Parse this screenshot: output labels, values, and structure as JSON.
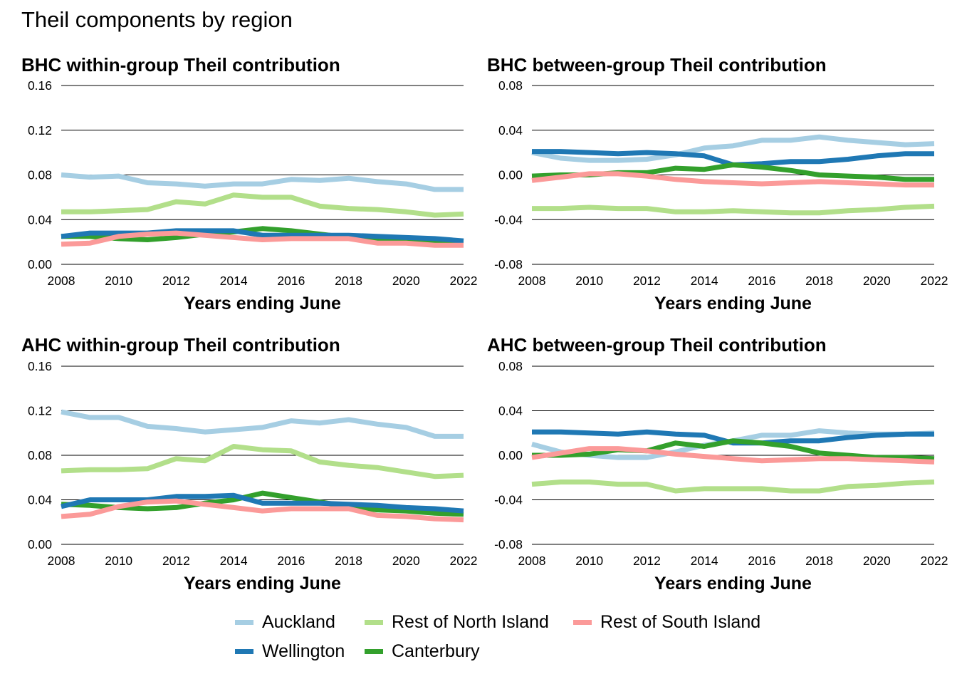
{
  "title": "Theil components by region",
  "colors": {
    "Auckland": "#a6cee3",
    "Wellington": "#1f78b4",
    "Rest of North Island": "#b2df8a",
    "Canterbury": "#33a02c",
    "Rest of South Island": "#fb9a99"
  },
  "legend": [
    {
      "name": "Auckland"
    },
    {
      "name": "Rest of North Island"
    },
    {
      "name": "Rest of South Island"
    },
    {
      "name": "Wellington"
    },
    {
      "name": "Canterbury"
    }
  ],
  "chart_data": [
    {
      "type": "line",
      "title": "BHC within-group Theil contribution",
      "xlabel": "Years ending June",
      "ylabel": "",
      "xlim": [
        2008,
        2022
      ],
      "ylim": [
        0,
        0.16
      ],
      "xticks": [
        "2008",
        "2010",
        "2012",
        "2014",
        "2016",
        "2018",
        "2020",
        "2022"
      ],
      "yticks": [
        "0.00",
        "0.04",
        "0.08",
        "0.12",
        "0.16"
      ],
      "x": [
        2008,
        2009,
        2010,
        2011,
        2012,
        2013,
        2014,
        2015,
        2016,
        2017,
        2018,
        2019,
        2020,
        2021,
        2022
      ],
      "series": [
        {
          "name": "Auckland",
          "values": [
            0.08,
            0.078,
            0.079,
            0.073,
            0.072,
            0.07,
            0.072,
            0.072,
            0.076,
            0.075,
            0.077,
            0.074,
            0.072,
            0.067,
            0.067
          ]
        },
        {
          "name": "Rest of North Island",
          "values": [
            0.047,
            0.047,
            0.048,
            0.049,
            0.056,
            0.054,
            0.062,
            0.06,
            0.06,
            0.052,
            0.05,
            0.049,
            0.047,
            0.044,
            0.045
          ]
        },
        {
          "name": "Canterbury",
          "values": [
            0.025,
            0.025,
            0.023,
            0.022,
            0.024,
            0.027,
            0.029,
            0.032,
            0.03,
            0.027,
            0.024,
            0.022,
            0.021,
            0.02,
            0.02
          ]
        },
        {
          "name": "Wellington",
          "values": [
            0.025,
            0.028,
            0.028,
            0.028,
            0.03,
            0.03,
            0.03,
            0.026,
            0.026,
            0.026,
            0.026,
            0.025,
            0.024,
            0.023,
            0.021
          ]
        },
        {
          "name": "Rest of South Island",
          "values": [
            0.018,
            0.019,
            0.025,
            0.027,
            0.028,
            0.026,
            0.024,
            0.022,
            0.023,
            0.023,
            0.023,
            0.019,
            0.019,
            0.017,
            0.017
          ]
        }
      ]
    },
    {
      "type": "line",
      "title": "BHC between-group Theil contribution",
      "xlabel": "Years ending June",
      "ylabel": "",
      "xlim": [
        2008,
        2022
      ],
      "ylim": [
        -0.08,
        0.08
      ],
      "xticks": [
        "2008",
        "2010",
        "2012",
        "2014",
        "2016",
        "2018",
        "2020",
        "2022"
      ],
      "yticks": [
        "-0.08",
        "-0.04",
        "0.00",
        "0.04",
        "0.08"
      ],
      "x": [
        2008,
        2009,
        2010,
        2011,
        2012,
        2013,
        2014,
        2015,
        2016,
        2017,
        2018,
        2019,
        2020,
        2021,
        2022
      ],
      "series": [
        {
          "name": "Auckland",
          "values": [
            0.02,
            0.015,
            0.013,
            0.013,
            0.014,
            0.018,
            0.024,
            0.026,
            0.031,
            0.031,
            0.034,
            0.031,
            0.029,
            0.027,
            0.028
          ]
        },
        {
          "name": "Wellington",
          "values": [
            0.021,
            0.021,
            0.02,
            0.019,
            0.02,
            0.019,
            0.017,
            0.009,
            0.01,
            0.012,
            0.012,
            0.014,
            0.017,
            0.019,
            0.019
          ]
        },
        {
          "name": "Canterbury",
          "values": [
            -0.001,
            0.0,
            0.0,
            0.002,
            0.002,
            0.006,
            0.005,
            0.009,
            0.007,
            0.004,
            0.0,
            -0.001,
            -0.002,
            -0.004,
            -0.004
          ]
        },
        {
          "name": "Rest of South Island",
          "values": [
            -0.005,
            -0.002,
            0.001,
            0.001,
            -0.001,
            -0.004,
            -0.006,
            -0.007,
            -0.008,
            -0.007,
            -0.006,
            -0.007,
            -0.008,
            -0.009,
            -0.009
          ]
        },
        {
          "name": "Rest of North Island",
          "values": [
            -0.03,
            -0.03,
            -0.029,
            -0.03,
            -0.03,
            -0.033,
            -0.033,
            -0.032,
            -0.033,
            -0.034,
            -0.034,
            -0.032,
            -0.031,
            -0.029,
            -0.028
          ]
        }
      ]
    },
    {
      "type": "line",
      "title": "AHC within-group Theil contribution",
      "xlabel": "Years ending June",
      "ylabel": "",
      "xlim": [
        2008,
        2022
      ],
      "ylim": [
        0,
        0.16
      ],
      "xticks": [
        "2008",
        "2010",
        "2012",
        "2014",
        "2016",
        "2018",
        "2020",
        "2022"
      ],
      "yticks": [
        "0.00",
        "0.04",
        "0.08",
        "0.12",
        "0.16"
      ],
      "x": [
        2008,
        2009,
        2010,
        2011,
        2012,
        2013,
        2014,
        2015,
        2016,
        2017,
        2018,
        2019,
        2020,
        2021,
        2022
      ],
      "series": [
        {
          "name": "Auckland",
          "values": [
            0.119,
            0.114,
            0.114,
            0.106,
            0.104,
            0.101,
            0.103,
            0.105,
            0.111,
            0.109,
            0.112,
            0.108,
            0.105,
            0.097,
            0.097
          ]
        },
        {
          "name": "Rest of North Island",
          "values": [
            0.066,
            0.067,
            0.067,
            0.068,
            0.077,
            0.075,
            0.088,
            0.085,
            0.084,
            0.074,
            0.071,
            0.069,
            0.065,
            0.061,
            0.062
          ]
        },
        {
          "name": "Canterbury",
          "values": [
            0.036,
            0.035,
            0.033,
            0.032,
            0.033,
            0.037,
            0.04,
            0.046,
            0.042,
            0.038,
            0.034,
            0.031,
            0.03,
            0.028,
            0.027
          ]
        },
        {
          "name": "Wellington",
          "values": [
            0.034,
            0.04,
            0.04,
            0.04,
            0.043,
            0.043,
            0.044,
            0.037,
            0.037,
            0.037,
            0.036,
            0.035,
            0.033,
            0.032,
            0.03
          ]
        },
        {
          "name": "Rest of South Island",
          "values": [
            0.025,
            0.027,
            0.034,
            0.038,
            0.039,
            0.036,
            0.033,
            0.03,
            0.032,
            0.032,
            0.032,
            0.026,
            0.025,
            0.023,
            0.022
          ]
        }
      ]
    },
    {
      "type": "line",
      "title": "AHC between-group Theil contribution",
      "xlabel": "Years ending June",
      "ylabel": "",
      "xlim": [
        2008,
        2022
      ],
      "ylim": [
        -0.08,
        0.08
      ],
      "xticks": [
        "2008",
        "2010",
        "2012",
        "2014",
        "2016",
        "2018",
        "2020",
        "2022"
      ],
      "yticks": [
        "-0.08",
        "-0.04",
        "0.00",
        "0.04",
        "0.08"
      ],
      "x": [
        2008,
        2009,
        2010,
        2011,
        2012,
        2013,
        2014,
        2015,
        2016,
        2017,
        2018,
        2019,
        2020,
        2021,
        2022
      ],
      "series": [
        {
          "name": "Auckland",
          "values": [
            0.01,
            0.003,
            0.0,
            -0.002,
            -0.002,
            0.003,
            0.009,
            0.013,
            0.018,
            0.018,
            0.022,
            0.02,
            0.019,
            0.019,
            0.02
          ]
        },
        {
          "name": "Wellington",
          "values": [
            0.021,
            0.021,
            0.02,
            0.019,
            0.021,
            0.019,
            0.018,
            0.011,
            0.011,
            0.013,
            0.013,
            0.016,
            0.018,
            0.019,
            0.019
          ]
        },
        {
          "name": "Canterbury",
          "values": [
            0.0,
            0.0,
            0.001,
            0.005,
            0.004,
            0.011,
            0.008,
            0.013,
            0.011,
            0.008,
            0.002,
            0.0,
            -0.002,
            -0.002,
            -0.003
          ]
        },
        {
          "name": "Rest of South Island",
          "values": [
            -0.002,
            0.002,
            0.006,
            0.006,
            0.004,
            0.001,
            -0.001,
            -0.003,
            -0.005,
            -0.004,
            -0.003,
            -0.003,
            -0.004,
            -0.005,
            -0.006
          ]
        },
        {
          "name": "Rest of North Island",
          "values": [
            -0.026,
            -0.024,
            -0.024,
            -0.026,
            -0.026,
            -0.032,
            -0.03,
            -0.03,
            -0.03,
            -0.032,
            -0.032,
            -0.028,
            -0.027,
            -0.025,
            -0.024
          ]
        }
      ]
    }
  ]
}
